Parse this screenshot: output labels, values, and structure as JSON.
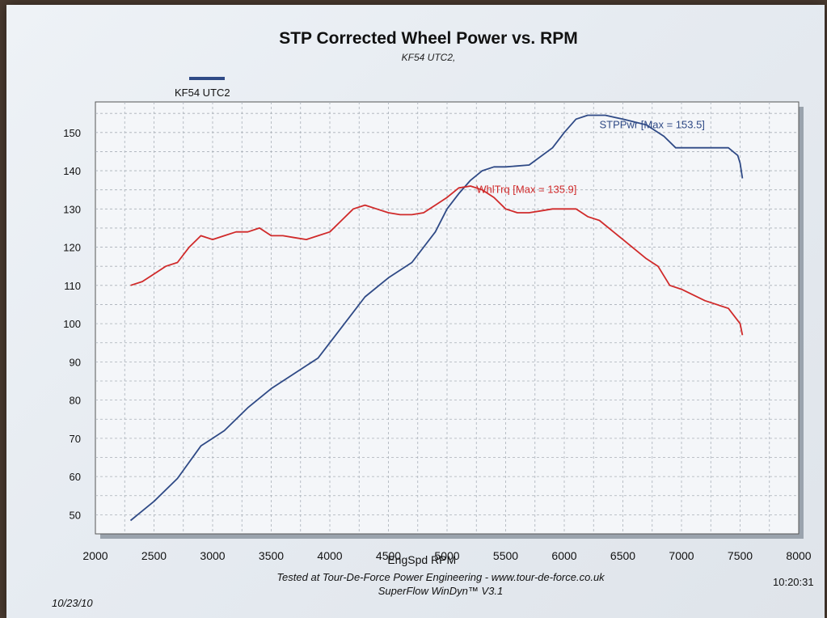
{
  "chart_data": {
    "type": "line",
    "title": "STP Corrected Wheel Power vs. RPM",
    "subtitle": "KF54 UTC2,",
    "legend": [
      "KF54 UTC2"
    ],
    "xlabel": "EngSpd RPM",
    "ylabel": "",
    "xlim": [
      2000,
      8000
    ],
    "ylim": [
      45,
      158
    ],
    "xticks": [
      2000,
      2500,
      3000,
      3500,
      4000,
      4500,
      5000,
      5500,
      6000,
      6500,
      7000,
      7500,
      8000
    ],
    "yticks": [
      50,
      60,
      70,
      80,
      90,
      100,
      110,
      120,
      130,
      140,
      150
    ],
    "grid": true,
    "series": [
      {
        "name": "STPPwr",
        "label": "STPPwr [Max = 153.5]",
        "color": "#2f4a86",
        "x": [
          2300,
          2500,
          2700,
          2900,
          3000,
          3100,
          3300,
          3500,
          3700,
          3900,
          4100,
          4300,
          4500,
          4700,
          4900,
          5000,
          5100,
          5200,
          5300,
          5400,
          5500,
          5700,
          5900,
          6000,
          6100,
          6200,
          6350,
          6500,
          6700,
          6850,
          6950,
          7000,
          7200,
          7400,
          7480,
          7500,
          7520
        ],
        "values": [
          48.5,
          53.5,
          59.5,
          68,
          70,
          72,
          78,
          83,
          87,
          91,
          99,
          107,
          112,
          116,
          124,
          130,
          134,
          137.5,
          140,
          141,
          141,
          141.5,
          146,
          150,
          153.5,
          154.5,
          154.5,
          153.5,
          152,
          149,
          146,
          146,
          146,
          146,
          144,
          142,
          138
        ]
      },
      {
        "name": "WhlTrq",
        "label": "WhlTrq [Max = 135.9]",
        "color": "#d02a2a",
        "x": [
          2300,
          2400,
          2500,
          2600,
          2700,
          2800,
          2900,
          3000,
          3100,
          3200,
          3300,
          3400,
          3500,
          3600,
          3700,
          3800,
          3900,
          4000,
          4100,
          4200,
          4300,
          4400,
          4500,
          4600,
          4700,
          4800,
          4900,
          5000,
          5100,
          5200,
          5300,
          5400,
          5500,
          5600,
          5700,
          5800,
          5900,
          6000,
          6100,
          6200,
          6300,
          6500,
          6700,
          6800,
          6900,
          7000,
          7200,
          7400,
          7500,
          7520
        ],
        "values": [
          110,
          111,
          113,
          115,
          116,
          120,
          123,
          122,
          123,
          124,
          124,
          125,
          123,
          123,
          122.5,
          122,
          123,
          124,
          127,
          130,
          131,
          130,
          129,
          128.5,
          128.5,
          129,
          131,
          133,
          135.5,
          136,
          135,
          133,
          130,
          129,
          129,
          129.5,
          130,
          130,
          130,
          128,
          127,
          122,
          117,
          115,
          110,
          109,
          106,
          104,
          100,
          97
        ]
      }
    ],
    "annotations": [
      "STPPwr [Max = 153.5]",
      "WhlTrq [Max = 135.9]"
    ]
  },
  "footer": {
    "line1": "Tested at Tour-De-Force Power Engineering - www.tour-de-force.co.uk",
    "line2": "SuperFlow WinDyn™ V3.1",
    "date": "10/23/10",
    "time": "10:20:31"
  }
}
